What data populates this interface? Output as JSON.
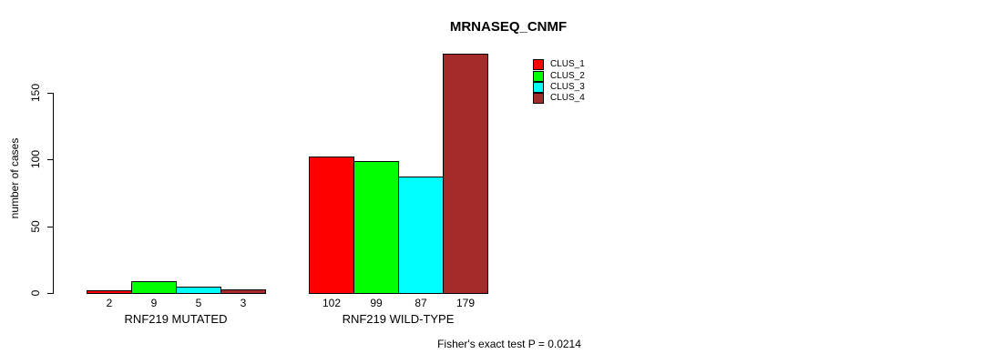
{
  "title": "MRNASEQ_CNMF",
  "ylabel": "number of cases",
  "footnote": "Fisher's exact test P = 0.0214",
  "chart_data": {
    "type": "bar",
    "title": "MRNASEQ_CNMF",
    "xlabel": "",
    "ylabel": "number of cases",
    "categories": [
      "RNF219 MUTATED",
      "RNF219 WILD-TYPE"
    ],
    "series": [
      {
        "name": "CLUS_1",
        "color": "#ff0000",
        "values": [
          2,
          102
        ]
      },
      {
        "name": "CLUS_2",
        "color": "#00ff00",
        "values": [
          9,
          99
        ]
      },
      {
        "name": "CLUS_3",
        "color": "#00ffff",
        "values": [
          5,
          87
        ]
      },
      {
        "name": "CLUS_4",
        "color": "#a52a2a",
        "values": [
          3,
          179
        ]
      }
    ],
    "yticks": [
      0,
      50,
      100,
      150
    ],
    "ylim": [
      0,
      183
    ],
    "grid": false,
    "bar_values_shown": true,
    "legend_position": "top-right",
    "annotation": "Fisher's exact test P = 0.0214"
  }
}
